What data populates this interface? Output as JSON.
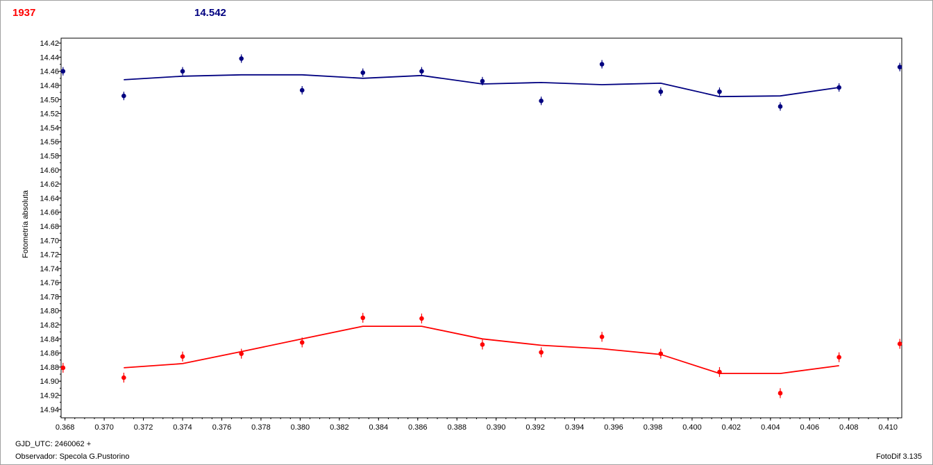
{
  "header": {
    "series_a_label": "1937",
    "series_b_label": "14.542"
  },
  "footer": {
    "gjd_label": "GJD_UTC: 2460062 +",
    "observer_label": "Observador: Specola G.Pustorino",
    "software_label": "FotoDif 3.135"
  },
  "colors": {
    "series_a": "#ff0000",
    "series_b": "#000080",
    "grid": "#a0a0a0",
    "frame": "#a0a0a0"
  },
  "chart_data": {
    "type": "scatter",
    "ylabel": "Fotometría absoluta",
    "xlabel": "",
    "xlim": [
      0.3678,
      0.4107
    ],
    "ylim": [
      14.952,
      14.413
    ],
    "y_inverted": true,
    "grid": true,
    "x_ticks": [
      "0.368",
      "0.370",
      "0.372",
      "0.374",
      "0.376",
      "0.378",
      "0.380",
      "0.382",
      "0.384",
      "0.386",
      "0.388",
      "0.390",
      "0.392",
      "0.394",
      "0.396",
      "0.398",
      "0.400",
      "0.402",
      "0.404",
      "0.406",
      "0.408",
      "0.410"
    ],
    "y_ticks": [
      "14.42",
      "14.44",
      "14.46",
      "14.48",
      "14.50",
      "14.52",
      "14.54",
      "14.56",
      "14.58",
      "14.60",
      "14.62",
      "14.64",
      "14.66",
      "14.68",
      "14.70",
      "14.72",
      "14.74",
      "14.76",
      "14.78",
      "14.80",
      "14.82",
      "14.84",
      "14.86",
      "14.88",
      "14.90",
      "14.92",
      "14.94"
    ],
    "series": [
      {
        "name": "",
        "color": "#000080",
        "x": [
          0.3679,
          0.371,
          0.374,
          0.377,
          0.3801,
          0.3832,
          0.3862,
          0.3893,
          0.3923,
          0.3954,
          0.3984,
          0.4014,
          0.4045,
          0.4075,
          0.4106
        ],
        "y": [
          14.46,
          14.495,
          14.46,
          14.442,
          14.487,
          14.462,
          14.46,
          14.474,
          14.502,
          14.45,
          14.489,
          14.489,
          14.51,
          14.483,
          14.454
        ],
        "err": [
          0.006,
          0.006,
          0.006,
          0.006,
          0.006,
          0.006,
          0.006,
          0.006,
          0.006,
          0.006,
          0.006,
          0.006,
          0.006,
          0.006,
          0.006
        ],
        "fit_x": [
          0.371,
          0.374,
          0.377,
          0.3801,
          0.3832,
          0.3862,
          0.3893,
          0.3923,
          0.3954,
          0.3984,
          0.4014,
          0.4045,
          0.4075
        ],
        "fit_y": [
          14.472,
          14.467,
          14.465,
          14.465,
          14.47,
          14.466,
          14.478,
          14.476,
          14.479,
          14.477,
          14.496,
          14.495,
          14.483
        ]
      },
      {
        "name": "",
        "color": "#ff0000",
        "x": [
          0.3679,
          0.371,
          0.374,
          0.377,
          0.3801,
          0.3832,
          0.3862,
          0.3893,
          0.3923,
          0.3954,
          0.3984,
          0.4014,
          0.4045,
          0.4075,
          0.4106
        ],
        "y": [
          14.881,
          14.895,
          14.865,
          14.861,
          14.845,
          14.81,
          14.811,
          14.848,
          14.859,
          14.837,
          14.861,
          14.887,
          14.917,
          14.866,
          14.847
        ],
        "err": [
          0.007,
          0.007,
          0.007,
          0.007,
          0.007,
          0.007,
          0.007,
          0.007,
          0.007,
          0.007,
          0.007,
          0.007,
          0.007,
          0.007,
          0.007
        ],
        "fit_x": [
          0.371,
          0.374,
          0.377,
          0.3801,
          0.3832,
          0.3862,
          0.3893,
          0.3923,
          0.3954,
          0.3984,
          0.4014,
          0.4045,
          0.4075
        ],
        "fit_y": [
          14.881,
          14.875,
          14.858,
          14.84,
          14.822,
          14.822,
          14.84,
          14.849,
          14.854,
          14.862,
          14.889,
          14.889,
          14.878
        ]
      }
    ]
  }
}
